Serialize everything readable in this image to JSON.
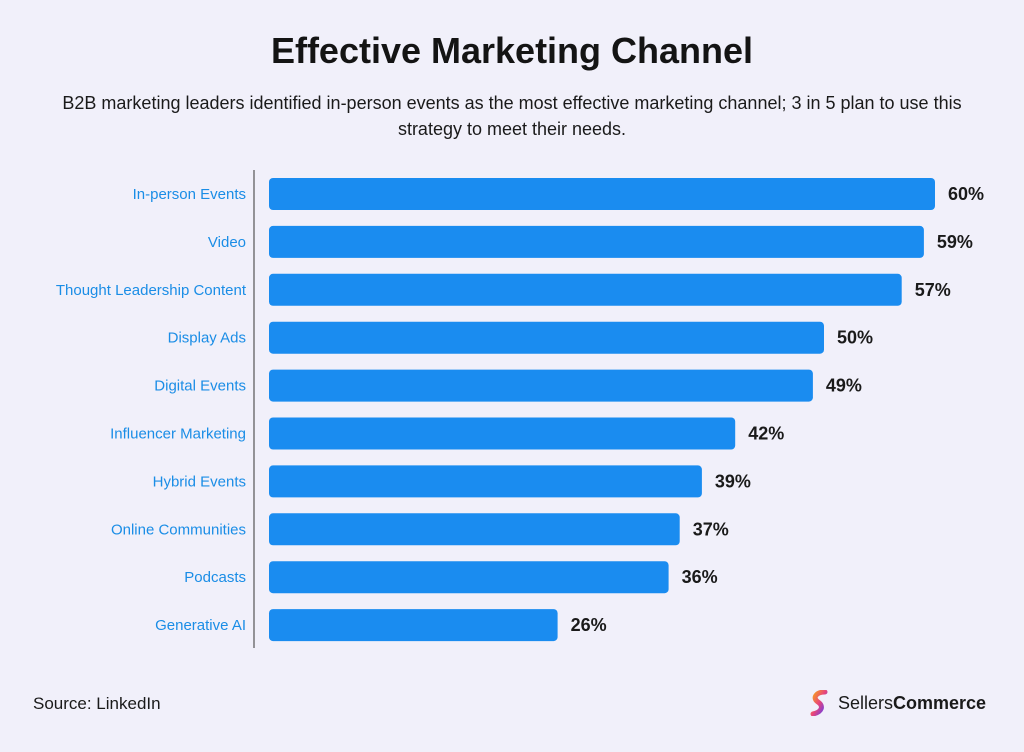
{
  "title": "Effective Marketing Channel",
  "subtitle": "B2B marketing leaders identified in-person events as the most effective marketing channel; 3 in 5 plan to use this strategy to meet their needs.",
  "source": "Source: LinkedIn",
  "brand": {
    "name_light": "Sellers",
    "name_bold": "Commerce"
  },
  "colors": {
    "bar": "#1a8cf0",
    "label": "#1a8de6",
    "background": "#f1f0fa",
    "axis": "#555555"
  },
  "chart_data": {
    "type": "bar",
    "orientation": "horizontal",
    "categories": [
      "In-person Events",
      "Video",
      "Thought Leadership Content",
      "Display Ads",
      "Digital Events",
      "Influencer Marketing",
      "Hybrid Events",
      "Online Communities",
      "Podcasts",
      "Generative AI"
    ],
    "values": [
      60,
      59,
      57,
      50,
      49,
      42,
      39,
      37,
      36,
      26
    ],
    "value_labels": [
      "60%",
      "59%",
      "57%",
      "50%",
      "49%",
      "42%",
      "39%",
      "37%",
      "36%",
      "26%"
    ],
    "unit": "%",
    "xlim": [
      0,
      60
    ],
    "grid": false,
    "legend": "none"
  }
}
